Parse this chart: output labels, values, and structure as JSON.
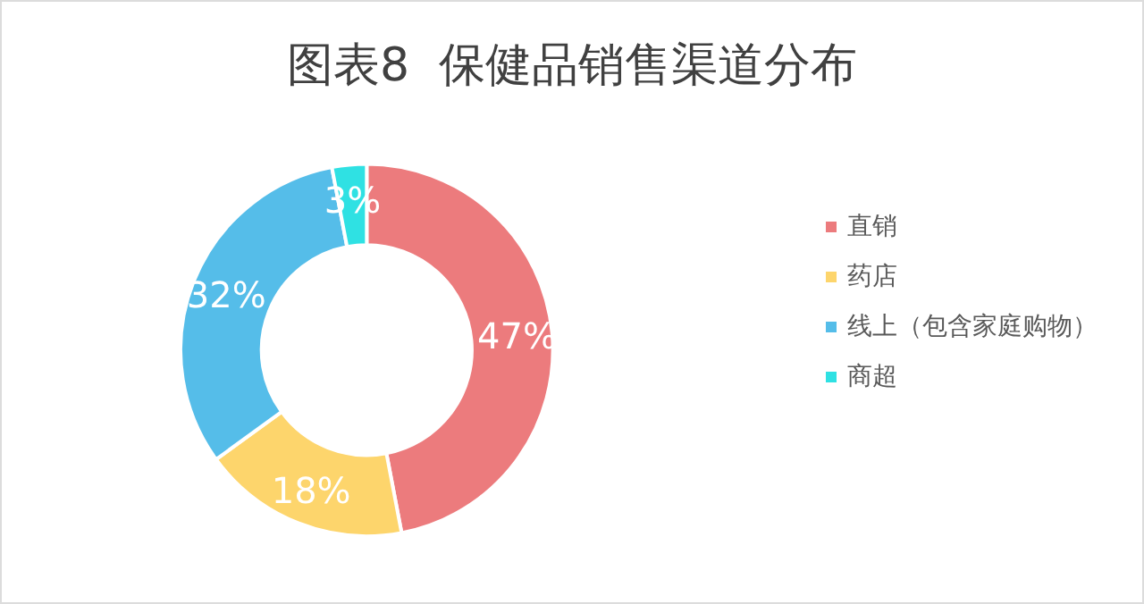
{
  "chart_data": {
    "type": "donut",
    "title": "图表8  保健品销售渠道分布",
    "categories": [
      "直销",
      "药店",
      "线上（包含家庭购物）",
      "商超"
    ],
    "values": [
      47,
      18,
      32,
      3
    ],
    "colors": [
      "#ec7b7d",
      "#fdd56c",
      "#55bde9",
      "#2fe1e3"
    ],
    "value_labels": [
      "47%",
      "18%",
      "32%",
      "3%"
    ],
    "legend": "right"
  }
}
